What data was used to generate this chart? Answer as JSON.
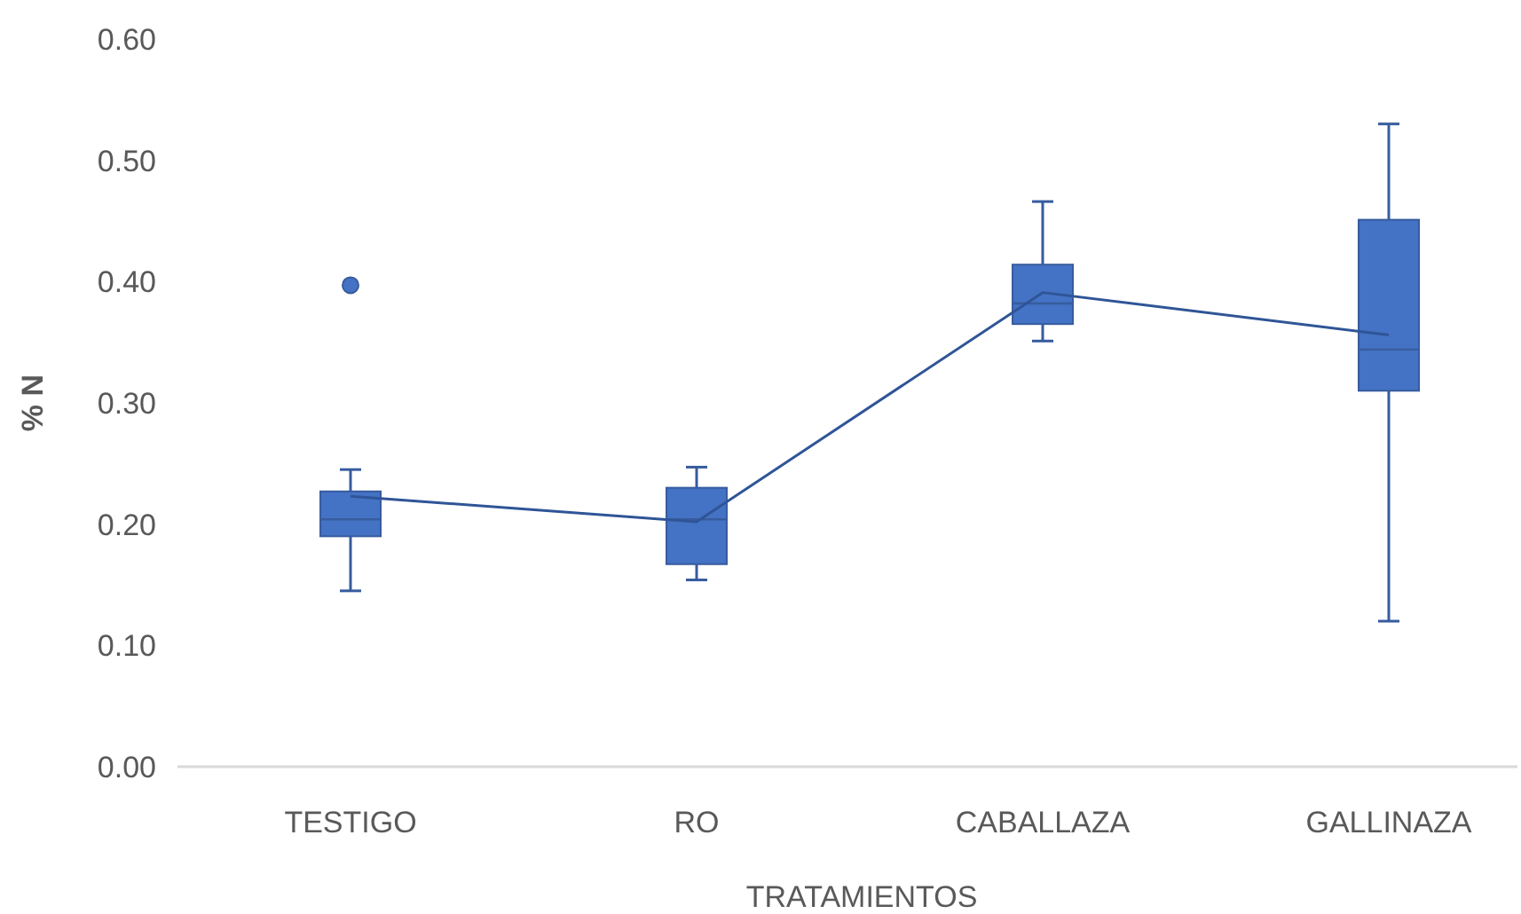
{
  "chart_data": {
    "type": "box",
    "xlabel": "TRATAMIENTOS",
    "ylabel": "% N",
    "categories": [
      "TESTIGO",
      "RO",
      "CABALLAZA",
      "GALLINAZA"
    ],
    "ylim": [
      0,
      0.6
    ],
    "yticks": [
      {
        "value": 0,
        "label": "0.00"
      },
      {
        "value": 0.1,
        "label": "0.10"
      },
      {
        "value": 0.2,
        "label": "0.20"
      },
      {
        "value": 0.3,
        "label": "0.30"
      },
      {
        "value": 0.4,
        "label": "0.40"
      },
      {
        "value": 0.5,
        "label": "0.50"
      },
      {
        "value": 0.6,
        "label": "0.60"
      }
    ],
    "grid": false,
    "series": [
      {
        "color": "#4472c4",
        "boxes": [
          {
            "low": 0.145,
            "q1": 0.19,
            "median": 0.204,
            "q3": 0.227,
            "high": 0.245,
            "outliers": [
              0.397
            ]
          },
          {
            "low": 0.154,
            "q1": 0.167,
            "median": 0.204,
            "q3": 0.23,
            "high": 0.247
          },
          {
            "low": 0.351,
            "q1": 0.365,
            "median": 0.382,
            "q3": 0.414,
            "high": 0.466
          },
          {
            "low": 0.12,
            "q1": 0.31,
            "median": 0.344,
            "q3": 0.451,
            "high": 0.53
          }
        ]
      },
      {
        "type": "line",
        "color": "#2f5597",
        "values": [
          0.223,
          0.202,
          0.391,
          0.356
        ]
      }
    ]
  }
}
